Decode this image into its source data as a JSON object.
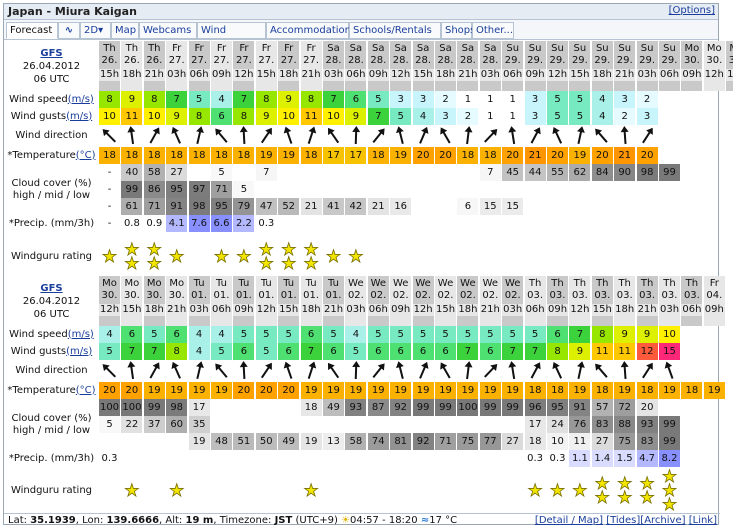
{
  "title": "Japan - Miura Kaigan",
  "options_link": "[Options]",
  "tabs": [
    "Forecast",
    "",
    "2D",
    "Map",
    "Webcams",
    "Wind reports",
    "Accommodation",
    "Schools/Rentals",
    "Shops",
    "Other..."
  ],
  "model": {
    "name": "GFS",
    "date": "26.04.2012",
    "run": "06 UTC"
  },
  "labels": {
    "windspeed": "Wind speed",
    "windgusts": "Wind gusts",
    "unit_ms": "(m/s)",
    "winddir": "Wind direction",
    "temp": "*Temperature",
    "unit_c": "(°C)",
    "cloud": "Cloud cover (%) high / mid / low",
    "precip": "*Precip. (mm/3h)",
    "rating": "Windguru rating"
  },
  "block1": {
    "days": [
      "Th",
      "Th",
      "Th",
      "Fr",
      "Fr",
      "Fr",
      "Fr",
      "Fr",
      "Fr",
      "Fr",
      "Sa",
      "Sa",
      "Sa",
      "Sa",
      "Sa",
      "Sa",
      "Sa",
      "Sa",
      "Su",
      "Su",
      "Su",
      "Su",
      "Su",
      "Su",
      "Su",
      "Su",
      "Mo",
      "Mo",
      "Mo"
    ],
    "dates": [
      "26.",
      "26.",
      "26.",
      "27.",
      "27.",
      "27.",
      "27.",
      "27.",
      "27.",
      "27.",
      "28.",
      "28.",
      "28.",
      "28.",
      "28.",
      "28.",
      "28.",
      "28.",
      "29.",
      "29.",
      "29.",
      "29.",
      "29.",
      "29.",
      "29.",
      "29.",
      "30.",
      "30.",
      "30."
    ],
    "hours": [
      "15h",
      "18h",
      "21h",
      "03h",
      "06h",
      "09h",
      "12h",
      "15h",
      "18h",
      "21h",
      "03h",
      "06h",
      "09h",
      "12h",
      "15h",
      "18h",
      "21h",
      "03h",
      "06h",
      "09h",
      "12h",
      "15h",
      "18h",
      "21h",
      "03h",
      "06h",
      "09h",
      "12h",
      "15h"
    ],
    "wspd": [
      "8",
      "9",
      "8",
      "7",
      "5",
      "4",
      "7",
      "8",
      "9",
      "8",
      "7",
      "6",
      "5",
      "3",
      "3",
      "2",
      "1",
      "1",
      "1",
      "3",
      "5",
      "5",
      "4",
      "3",
      "2",
      "",
      "",
      "",
      ""
    ],
    "gust": [
      "10",
      "11",
      "10",
      "9",
      "8",
      "6",
      "8",
      "9",
      "10",
      "11",
      "10",
      "9",
      "7",
      "5",
      "4",
      "3",
      "2",
      "1",
      "1",
      "3",
      "5",
      "5",
      "4",
      "2",
      "3",
      "",
      "",
      "",
      ""
    ],
    "temp": [
      "18",
      "18",
      "18",
      "18",
      "18",
      "18",
      "18",
      "19",
      "19",
      "18",
      "17",
      "17",
      "18",
      "19",
      "20",
      "20",
      "18",
      "18",
      "20",
      "21",
      "20",
      "19",
      "20",
      "21",
      "20",
      "",
      "",
      "",
      ""
    ],
    "cloud_high": [
      "-",
      "40",
      "58",
      "27",
      "",
      "5",
      "",
      "7",
      "",
      "",
      "",
      "",
      "",
      "",
      "",
      "",
      "",
      "7",
      "45",
      "44",
      "55",
      "62",
      "84",
      "90",
      "98",
      "99",
      "",
      "",
      ""
    ],
    "cloud_mid": [
      "-",
      "99",
      "86",
      "95",
      "97",
      "71",
      "5",
      "",
      "",
      "",
      "",
      "",
      "",
      "",
      "",
      "",
      "",
      "",
      "",
      "",
      "",
      "",
      "",
      "",
      "",
      "",
      "",
      "",
      ""
    ],
    "cloud_low": [
      "-",
      "61",
      "71",
      "91",
      "98",
      "95",
      "79",
      "47",
      "52",
      "21",
      "41",
      "42",
      "21",
      "16",
      "",
      "",
      "6",
      "15",
      "15",
      "",
      "",
      "",
      "",
      "",
      "",
      "",
      "",
      "",
      ""
    ],
    "precip": [
      "-",
      "0.8",
      "0.9",
      "4.1",
      "7.6",
      "6.6",
      "2.2",
      "0.3",
      "",
      "",
      "",
      "",
      "",
      "",
      "",
      "",
      "",
      "",
      "",
      "",
      "",
      "",
      "",
      "",
      "",
      "",
      "",
      "",
      ""
    ],
    "stars": [
      1,
      2,
      2,
      1,
      0,
      1,
      1,
      2,
      2,
      2,
      1,
      1,
      0,
      0,
      0,
      0,
      0,
      0,
      0,
      0,
      0,
      0,
      0,
      0,
      0,
      0,
      0,
      0,
      0
    ]
  },
  "block2": {
    "days": [
      "Mo",
      "Mo",
      "Mo",
      "Mo",
      "Tu",
      "Tu",
      "Tu",
      "Tu",
      "Tu",
      "Tu",
      "Tu",
      "We",
      "We",
      "We",
      "We",
      "We",
      "We",
      "We",
      "We",
      "Th",
      "Th",
      "Th",
      "Th",
      "Th",
      "Th",
      "Th",
      "Th",
      "Fr"
    ],
    "dates": [
      "30.",
      "30.",
      "30.",
      "30.",
      "01.",
      "01.",
      "01.",
      "01.",
      "01.",
      "01.",
      "01.",
      "02.",
      "02.",
      "02.",
      "02.",
      "02.",
      "02.",
      "02.",
      "02.",
      "03.",
      "03.",
      "03.",
      "03.",
      "03.",
      "03.",
      "03.",
      "03.",
      "04."
    ],
    "hours": [
      "12h",
      "15h",
      "18h",
      "21h",
      "03h",
      "06h",
      "09h",
      "12h",
      "15h",
      "18h",
      "21h",
      "03h",
      "06h",
      "09h",
      "12h",
      "15h",
      "18h",
      "21h",
      "03h",
      "06h",
      "09h",
      "12h",
      "15h",
      "18h",
      "21h",
      "03h",
      "06h",
      "09h"
    ],
    "wspd": [
      "4",
      "6",
      "5",
      "6",
      "4",
      "4",
      "5",
      "5",
      "5",
      "6",
      "5",
      "4",
      "5",
      "5",
      "5",
      "5",
      "5",
      "5",
      "5",
      "5",
      "6",
      "7",
      "8",
      "9",
      "9",
      "10",
      "",
      ""
    ],
    "gust": [
      "5",
      "7",
      "7",
      "8",
      "4",
      "5",
      "6",
      "5",
      "6",
      "7",
      "6",
      "5",
      "6",
      "6",
      "6",
      "6",
      "7",
      "6",
      "7",
      "7",
      "8",
      "9",
      "11",
      "11",
      "12",
      "15",
      "",
      ""
    ],
    "temp": [
      "20",
      "20",
      "19",
      "19",
      "19",
      "19",
      "20",
      "20",
      "20",
      "19",
      "19",
      "19",
      "19",
      "19",
      "19",
      "19",
      "19",
      "19",
      "19",
      "18",
      "18",
      "19",
      "18",
      "19",
      "18",
      "19",
      "18",
      "19"
    ],
    "cloud_high": [
      "100",
      "100",
      "99",
      "98",
      "17",
      "",
      "",
      "",
      "",
      "18",
      "49",
      "93",
      "87",
      "92",
      "99",
      "99",
      "100",
      "99",
      "99",
      "96",
      "95",
      "91",
      "57",
      "72",
      "20",
      "",
      "",
      ""
    ],
    "cloud_mid": [
      "5",
      "22",
      "37",
      "60",
      "35",
      "",
      "",
      "",
      "",
      "",
      "",
      "",
      "",
      "",
      "",
      "",
      "",
      "",
      "",
      "17",
      "24",
      "76",
      "83",
      "88",
      "93",
      "99",
      "",
      ""
    ],
    "cloud_low": [
      "",
      "",
      "",
      "",
      "19",
      "48",
      "51",
      "50",
      "49",
      "19",
      "13",
      "58",
      "74",
      "81",
      "92",
      "71",
      "75",
      "77",
      "27",
      "18",
      "10",
      "11",
      "27",
      "75",
      "83",
      "99",
      "",
      ""
    ],
    "precip": [
      "0.3",
      "",
      "",
      "",
      "",
      "",
      "",
      "",
      "",
      "",
      "",
      "",
      "",
      "",
      "",
      "",
      "",
      "",
      "",
      "0.3",
      "0.3",
      "1.1",
      "1.4",
      "1.5",
      "4.7",
      "8.2",
      "",
      ""
    ],
    "stars": [
      0,
      1,
      0,
      1,
      0,
      0,
      0,
      0,
      0,
      1,
      0,
      0,
      0,
      0,
      0,
      0,
      0,
      0,
      0,
      1,
      1,
      1,
      2,
      2,
      2,
      3,
      0,
      0
    ]
  },
  "footer": {
    "lat_label": "Lat:",
    "lat": "35.1939",
    "lon_label": "Lon:",
    "lon": "139.6666",
    "alt_label": "Alt:",
    "alt": "19 m",
    "tz_label": "Timezone:",
    "tz": "JST",
    "tz_off": "(UTC+9)",
    "sun": "04:57 - 18:20",
    "water": "17 °C",
    "links": [
      "[Detail / Map]",
      "[Tides]",
      "[Archive]",
      "[Link]"
    ]
  },
  "colors": {
    "header_dark": "#c9c9c9",
    "header_light": "#e7e7e7",
    "link": "#1a3e9c"
  }
}
